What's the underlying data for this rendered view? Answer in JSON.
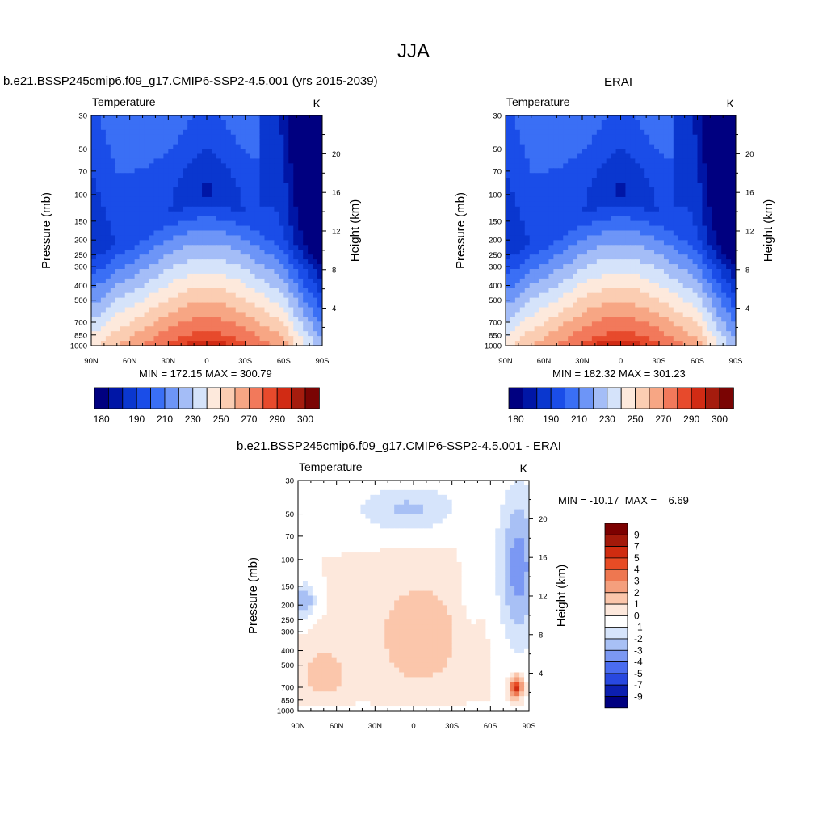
{
  "season_title": "JJA",
  "colors": {
    "model_temp": [
      "#000080",
      "#0016a6",
      "#0a37cf",
      "#1a4de8",
      "#3a6ff5",
      "#6d95f7",
      "#a4bdf7",
      "#d5e3fa",
      "#fde9dc",
      "#fbcdb2",
      "#f7a684",
      "#f2795b",
      "#e74a2c",
      "#d12b14",
      "#a51c0e",
      "#7a0403"
    ],
    "diff": [
      "#000080",
      "#0c1fb0",
      "#2848e0",
      "#4a6cf0",
      "#7b98f3",
      "#a8c0f5",
      "#d6e4fb",
      "#ffffff",
      "#fde8dc",
      "#fbc6ab",
      "#f49f7d",
      "#ee7750",
      "#e84c25",
      "#d02c10",
      "#a3190a",
      "#7c0000"
    ]
  },
  "chart_data": [
    {
      "type": "heatmap",
      "id": "model",
      "title": "b.e21.BSSP245cmip6.f09_g17.CMIP6-SSP2-4.5.001 (yrs 2015-2039)",
      "left_label": "Temperature",
      "right_label": "K",
      "ylabel": "Pressure (mb)",
      "y2label": "Height (km)",
      "x_ticks": [
        "90N",
        "60N",
        "30N",
        "0",
        "30S",
        "60S",
        "90S"
      ],
      "y_ticks": [
        30,
        50,
        70,
        100,
        150,
        200,
        250,
        300,
        400,
        500,
        700,
        850,
        1000
      ],
      "y2_ticks": [
        4,
        8,
        12,
        16,
        20
      ],
      "stats": "MIN = 172.15  MAX = 300.79",
      "colorbar_labels": [
        "180",
        "190",
        "210",
        "230",
        "250",
        "270",
        "290",
        "300"
      ],
      "min": 172.15,
      "max": 300.79
    },
    {
      "type": "heatmap",
      "id": "obs",
      "title": "ERAI",
      "left_label": "Temperature",
      "right_label": "K",
      "ylabel": "Pressure (mb)",
      "y2label": "Height (km)",
      "x_ticks": [
        "90N",
        "60N",
        "30N",
        "0",
        "30S",
        "60S",
        "90S"
      ],
      "y_ticks": [
        30,
        50,
        70,
        100,
        150,
        200,
        250,
        300,
        400,
        500,
        700,
        850,
        1000
      ],
      "y2_ticks": [
        4,
        8,
        12,
        16,
        20
      ],
      "stats": "MIN = 182.32  MAX = 301.23",
      "colorbar_labels": [
        "180",
        "190",
        "210",
        "230",
        "250",
        "270",
        "290",
        "300"
      ],
      "min": 182.32,
      "max": 301.23
    },
    {
      "type": "heatmap",
      "id": "diff",
      "title": "b.e21.BSSP245cmip6.f09_g17.CMIP6-SSP2-4.5.001 - ERAI",
      "left_label": "Temperature",
      "right_label": "K",
      "ylabel": "Pressure (mb)",
      "y2label": "Height (km)",
      "x_ticks": [
        "90N",
        "60N",
        "30N",
        "0",
        "30S",
        "60S",
        "90S"
      ],
      "y_ticks": [
        30,
        50,
        70,
        100,
        150,
        200,
        250,
        300,
        400,
        500,
        700,
        850,
        1000
      ],
      "y2_ticks": [
        4,
        8,
        12,
        16,
        20
      ],
      "stats": "MIN = -10.17  MAX =    6.69",
      "colorbar_labels": [
        "9",
        "7",
        "5",
        "4",
        "3",
        "2",
        "1",
        "0",
        "-1",
        "-2",
        "-3",
        "-4",
        "-5",
        "-7",
        "-9"
      ],
      "min": -10.17,
      "max": 6.69
    }
  ]
}
